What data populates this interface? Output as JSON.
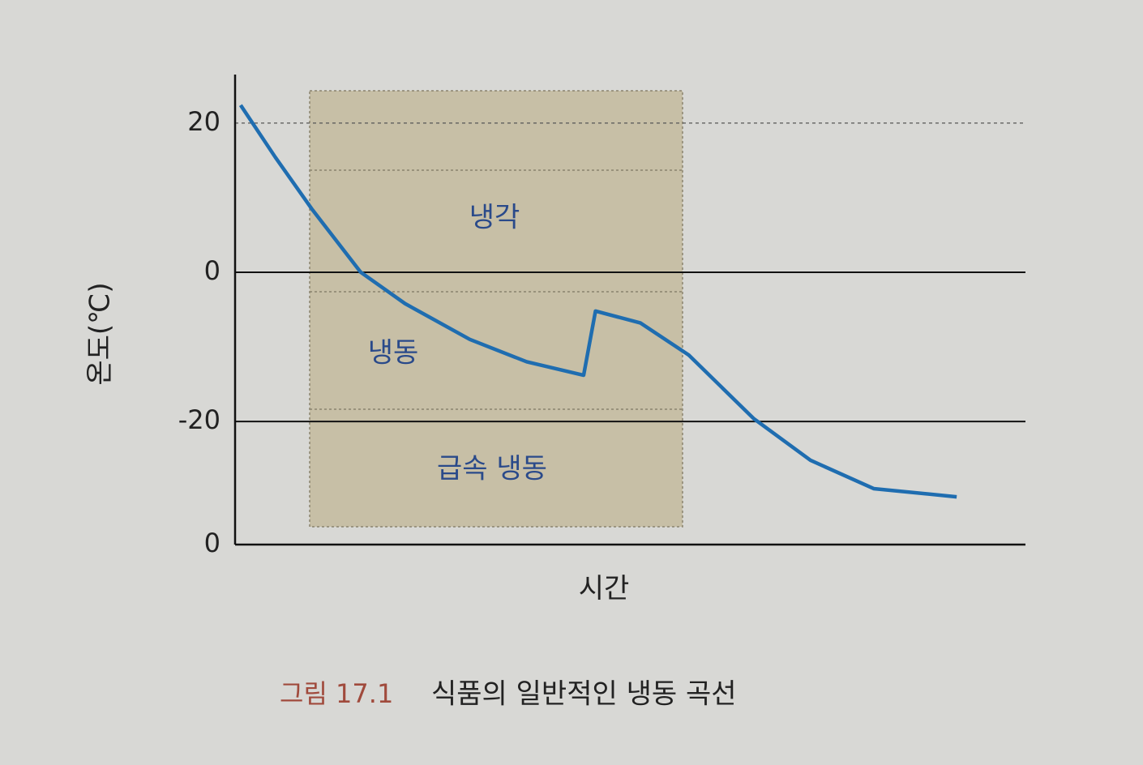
{
  "chart_data": {
    "type": "line",
    "y_label": "온도(℃)",
    "x_label": "시간",
    "caption_number": "그림 17.1",
    "caption": "식품의 일반적인 냉동 곡선",
    "regions": [
      "냉각",
      "냉동",
      "급속 냉동"
    ],
    "x": [
      0.7,
      5.1,
      9.7,
      15.9,
      21.5,
      29.7,
      36.9,
      44.1,
      45.6,
      51.3,
      57.4,
      65.6,
      72.8,
      80.8,
      91.3
    ],
    "series": [
      {
        "color": "#1f6db0",
        "values": [
          22.4,
          15.4,
          8.5,
          0,
          -4.2,
          -9.0,
          -12.0,
          -13.8,
          -5.2,
          -6.8,
          -11.1,
          -19.6,
          -25.2,
          -29.0,
          -30.1
        ]
      }
    ],
    "xlim": [
      0,
      100
    ],
    "ylim": [
      -36.5,
      26.5
    ],
    "yticks": [
      20,
      0,
      -20,
      {
        "value": -36.5,
        "label": "0"
      }
    ],
    "grid": true
  }
}
